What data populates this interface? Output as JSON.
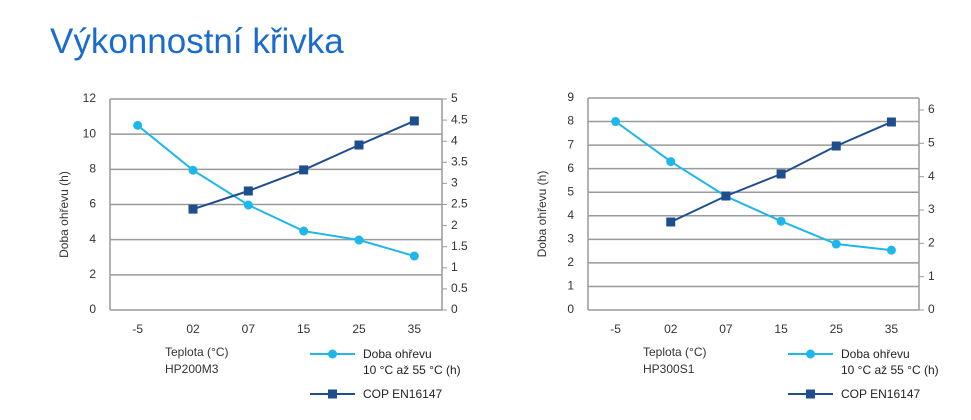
{
  "title": "Výkonnostní křivka",
  "chart_data": [
    {
      "type": "line",
      "subtitle": "HP200M3",
      "xlabel": "Teplota (°C)",
      "ylabel": "Doba ohřevu (h)",
      "categories": [
        "-5",
        "02",
        "07",
        "15",
        "25",
        "35"
      ],
      "ylim": [
        0,
        12
      ],
      "yticks": [
        0,
        2,
        4,
        6,
        8,
        10,
        12
      ],
      "y2lim": [
        0,
        5
      ],
      "y2ticks": [
        0,
        0.5,
        1,
        1.5,
        2,
        2.5,
        3,
        3.5,
        4,
        4.5,
        5
      ],
      "grid": true,
      "series": [
        {
          "name": "Doba ohřevu\n10 °C až 55 °C (h)",
          "color": "#1fb6ea",
          "marker": "circle",
          "values": [
            10.5,
            7.95,
            5.97,
            4.49,
            3.98,
            3.07
          ]
        },
        {
          "name": "COP EN16147",
          "color": "#1f4e8f",
          "marker": "square",
          "axis": "y2",
          "values": [
            null,
            2.39,
            2.82,
            3.32,
            3.91,
            4.48
          ]
        }
      ]
    },
    {
      "type": "line",
      "subtitle": "HP300S1",
      "xlabel": "Teplota (°C)",
      "ylabel": "Doba ohřevu (h)",
      "categories": [
        "-5",
        "02",
        "07",
        "15",
        "25",
        "35"
      ],
      "ylim": [
        0,
        9
      ],
      "yticks": [
        0,
        1,
        2,
        3,
        4,
        5,
        6,
        7,
        8,
        9
      ],
      "y2lim": [
        0,
        6.36
      ],
      "y2ticks": [
        0,
        1,
        2,
        3,
        4,
        5,
        6
      ],
      "grid": true,
      "series": [
        {
          "name": "Doba ohřevu\n10 °C až 55 °C (h)",
          "color": "#1fb6ea",
          "marker": "circle",
          "values": [
            8.0,
            6.3,
            4.83,
            3.77,
            2.8,
            2.54
          ]
        },
        {
          "name": "COP EN16147",
          "color": "#1f4e8f",
          "marker": "square",
          "axis": "y2",
          "values": [
            null,
            2.64,
            3.42,
            4.08,
            4.92,
            5.64
          ]
        }
      ]
    }
  ]
}
